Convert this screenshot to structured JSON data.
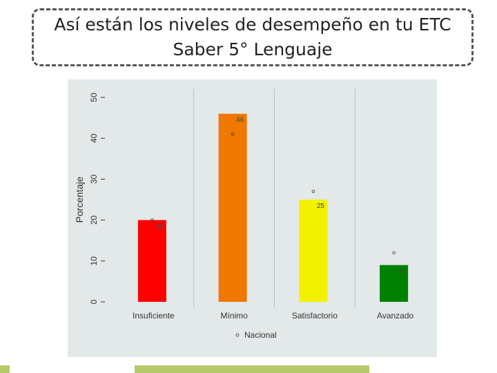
{
  "slide": {
    "title_line1": "Así están los niveles de desempeño en tu ETC",
    "title_line2": "Saber 5° Lenguaje"
  },
  "chart_data": {
    "type": "bar",
    "categories": [
      "Insuficiente",
      "Mínimo",
      "Satisfactorio",
      "Avanzado"
    ],
    "values": [
      20,
      46,
      25,
      9
    ],
    "value_labels": [
      "20",
      "46",
      "25",
      "9"
    ],
    "bar_colors": [
      "#ff0000",
      "#f07800",
      "#f2f200",
      "#008000"
    ],
    "nacional": [
      20,
      41,
      27,
      12
    ],
    "legend_label": "Nacional",
    "ylabel": "Porcentaje",
    "xlabel": "",
    "ylim": [
      0,
      50
    ],
    "yticks": [
      "0",
      "10",
      "20",
      "30",
      "40",
      "50"
    ],
    "grid": "vertical",
    "legend_position": "bottom",
    "background": "#e3e8e9"
  }
}
